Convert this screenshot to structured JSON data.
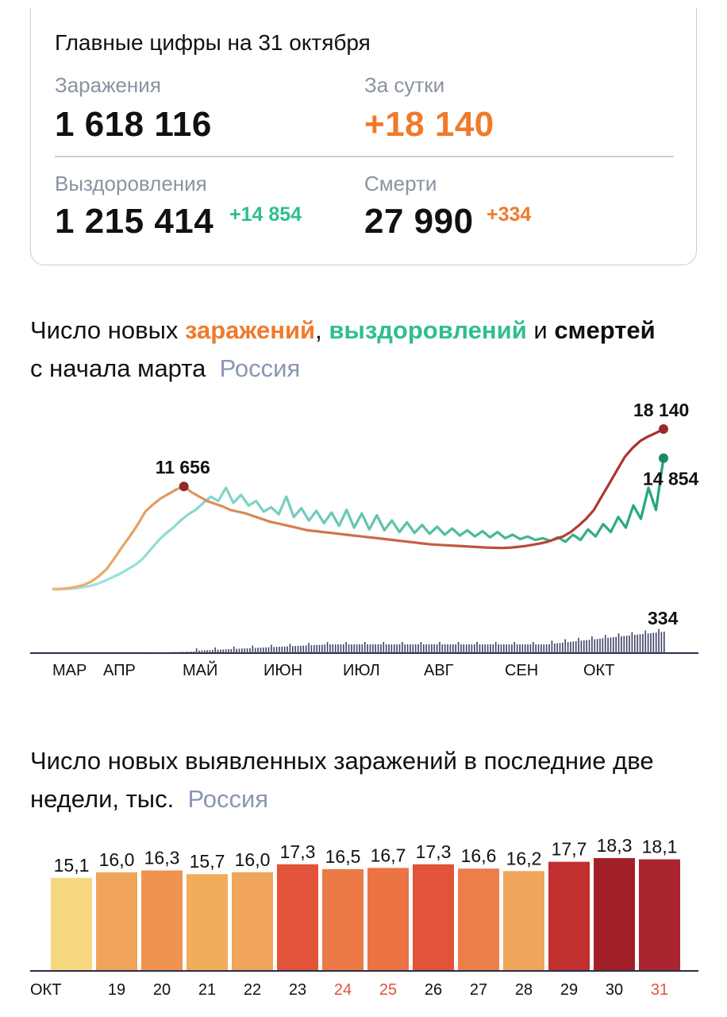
{
  "summary": {
    "title": "Главные цифры на 31 октября",
    "infections": {
      "label": "Заражения",
      "value": "1 618 116"
    },
    "daily": {
      "label": "За сутки",
      "value": "+18 140"
    },
    "recoveries": {
      "label": "Выздоровления",
      "value": "1 215 414",
      "delta": "+14 854"
    },
    "deaths": {
      "label": "Смерти",
      "value": "27 990",
      "delta": "+334"
    }
  },
  "chart1": {
    "title_prefix": "Число новых ",
    "title_inf": "заражений",
    "title_comma": ", ",
    "title_rec": "выздоровлений",
    "title_and": " и ",
    "title_deaths": "смертей",
    "title_line2": "с начала марта",
    "region": "Россия"
  },
  "chart2": {
    "title_line1": "Число новых выявленных заражений в последние две",
    "title_line2": "недели, тыс.",
    "region": "Россия"
  },
  "chart_data": [
    {
      "type": "line",
      "x_labels": [
        "МАР",
        "АПР",
        "МАЙ",
        "ИЮН",
        "ИЮЛ",
        "АВГ",
        "СЕН",
        "ОКТ"
      ],
      "series": [
        {
          "name": "заражений",
          "color": "#e8863a",
          "values": [
            50,
            80,
            150,
            300,
            500,
            900,
            1500,
            2300,
            3500,
            4800,
            6000,
            7300,
            8800,
            9600,
            10300,
            10800,
            11300,
            11656,
            11000,
            10500,
            10000,
            9700,
            9400,
            9000,
            8800,
            8600,
            8300,
            8000,
            7700,
            7500,
            7300,
            7100,
            6900,
            6700,
            6600,
            6500,
            6400,
            6300,
            6200,
            6100,
            6000,
            5900,
            5800,
            5700,
            5600,
            5500,
            5400,
            5300,
            5200,
            5100,
            5050,
            5000,
            4950,
            4900,
            4850,
            4800,
            4750,
            4720,
            4700,
            4720,
            4800,
            4900,
            5050,
            5200,
            5400,
            5700,
            6000,
            6500,
            7200,
            8000,
            9000,
            10500,
            12000,
            13500,
            15000,
            16000,
            16800,
            17300,
            17700,
            18140
          ]
        },
        {
          "name": "выздоровлений",
          "color": "#2fbf8a",
          "values": [
            10,
            20,
            50,
            120,
            250,
            400,
            650,
            1000,
            1400,
            1800,
            2300,
            2800,
            3500,
            4500,
            5500,
            6300,
            7000,
            7800,
            8500,
            9000,
            9800,
            10500,
            10000,
            11500,
            9800,
            10700,
            9500,
            10000,
            8800,
            9300,
            8500,
            10500,
            8200,
            9200,
            7800,
            8900,
            7500,
            8700,
            7200,
            9000,
            7000,
            8600,
            6800,
            8400,
            6700,
            7800,
            6500,
            7600,
            6400,
            7300,
            6300,
            7100,
            6200,
            6900,
            6100,
            6700,
            6000,
            6600,
            5900,
            6500,
            5800,
            6200,
            5700,
            6000,
            5600,
            5800,
            5500,
            5900,
            5400,
            6200,
            5600,
            6800,
            6000,
            7400,
            6500,
            8200,
            7000,
            9500,
            8000,
            11500,
            9000,
            14854
          ]
        },
        {
          "name": "смертей",
          "color": "#2a2e4a",
          "last": 334
        }
      ],
      "annotations": [
        {
          "label": "11 656",
          "series": "заражений",
          "month": "МАЙ"
        },
        {
          "label": "18 140",
          "series": "заражений",
          "month": "ОКТ"
        },
        {
          "label": "14 854",
          "series": "выздоровлений",
          "month": "ОКТ"
        },
        {
          "label": "334",
          "series": "смертей",
          "month": "ОКТ"
        }
      ]
    },
    {
      "type": "bar",
      "categories": [
        "ОКТ",
        "19",
        "20",
        "21",
        "22",
        "23",
        "24",
        "25",
        "26",
        "27",
        "28",
        "29",
        "30",
        "31"
      ],
      "values": [
        15.1,
        16.0,
        16.3,
        15.7,
        16.0,
        17.3,
        16.5,
        16.7,
        17.3,
        16.6,
        16.2,
        17.7,
        18.3,
        18.1
      ],
      "value_labels": [
        "15,1",
        "16,0",
        "16,3",
        "15,7",
        "16,0",
        "17,3",
        "16,5",
        "16,7",
        "17,3",
        "16,6",
        "16,2",
        "17,7",
        "18,3",
        "18,1"
      ],
      "bar_colors": [
        "#f7d780",
        "#f0a45a",
        "#ee944e",
        "#f1ad5c",
        "#f0a55a",
        "#e2543a",
        "#ec7a47",
        "#eb7344",
        "#e2543a",
        "#ec7e49",
        "#f0a65b",
        "#c0302e",
        "#a12028",
        "#aa2430"
      ],
      "label_colors": [
        "#111111",
        "#111111",
        "#111111",
        "#111111",
        "#111111",
        "#111111",
        "#e2543a",
        "#e2543a",
        "#111111",
        "#111111",
        "#111111",
        "#111111",
        "#111111",
        "#e2543a"
      ]
    }
  ]
}
